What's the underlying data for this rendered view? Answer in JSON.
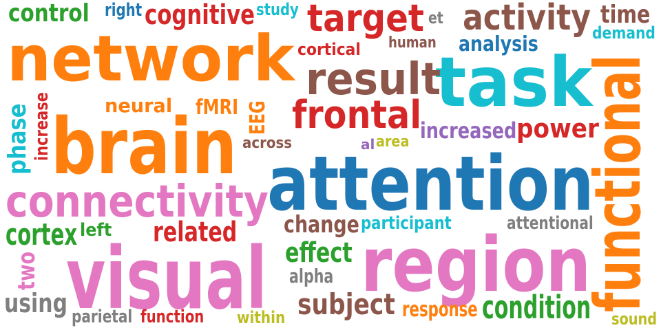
{
  "colors": {
    "orange": "#ff7f0e",
    "blue": "#1f77b4",
    "pink": "#e377c2",
    "red": "#d62728",
    "brown": "#8c564b",
    "cyan": "#17becf",
    "green": "#2ca02c",
    "purple": "#9467bd",
    "gray": "#7f7f7f",
    "olive": "#bcbd22"
  },
  "words": [
    {
      "text": "network",
      "color": "orange"
    },
    {
      "text": "brain",
      "color": "orange"
    },
    {
      "text": "attention",
      "color": "blue"
    },
    {
      "text": "region",
      "color": "pink"
    },
    {
      "text": "visual",
      "color": "pink"
    },
    {
      "text": "task",
      "color": "cyan"
    },
    {
      "text": "functional",
      "color": "orange"
    },
    {
      "text": "connectivity",
      "color": "pink"
    },
    {
      "text": "result",
      "color": "brown"
    },
    {
      "text": "target",
      "color": "red"
    },
    {
      "text": "activity",
      "color": "brown"
    },
    {
      "text": "frontal",
      "color": "red"
    },
    {
      "text": "cognitive",
      "color": "red"
    },
    {
      "text": "control",
      "color": "green"
    },
    {
      "text": "right",
      "color": "blue"
    },
    {
      "text": "study",
      "color": "cyan"
    },
    {
      "text": "et",
      "color": "gray"
    },
    {
      "text": "time",
      "color": "brown"
    },
    {
      "text": "demand",
      "color": "cyan"
    },
    {
      "text": "cortical",
      "color": "red"
    },
    {
      "text": "human",
      "color": "brown"
    },
    {
      "text": "analysis",
      "color": "blue"
    },
    {
      "text": "neural",
      "color": "orange"
    },
    {
      "text": "fMRI",
      "color": "orange"
    },
    {
      "text": "EEG",
      "color": "orange"
    },
    {
      "text": "increased",
      "color": "purple"
    },
    {
      "text": "power",
      "color": "red"
    },
    {
      "text": "across",
      "color": "brown"
    },
    {
      "text": "al",
      "color": "purple"
    },
    {
      "text": "area",
      "color": "olive"
    },
    {
      "text": "phase",
      "color": "cyan"
    },
    {
      "text": "increase",
      "color": "red"
    },
    {
      "text": "cortex",
      "color": "green"
    },
    {
      "text": "left",
      "color": "green"
    },
    {
      "text": "related",
      "color": "red"
    },
    {
      "text": "change",
      "color": "brown"
    },
    {
      "text": "participant",
      "color": "cyan"
    },
    {
      "text": "attentional",
      "color": "gray"
    },
    {
      "text": "effect",
      "color": "green"
    },
    {
      "text": "alpha",
      "color": "gray"
    },
    {
      "text": "two",
      "color": "pink"
    },
    {
      "text": "using",
      "color": "gray"
    },
    {
      "text": "parietal",
      "color": "gray"
    },
    {
      "text": "function",
      "color": "red"
    },
    {
      "text": "within",
      "color": "olive"
    },
    {
      "text": "subject",
      "color": "brown"
    },
    {
      "text": "response",
      "color": "orange"
    },
    {
      "text": "condition",
      "color": "green"
    },
    {
      "text": "sound",
      "color": "olive"
    }
  ]
}
